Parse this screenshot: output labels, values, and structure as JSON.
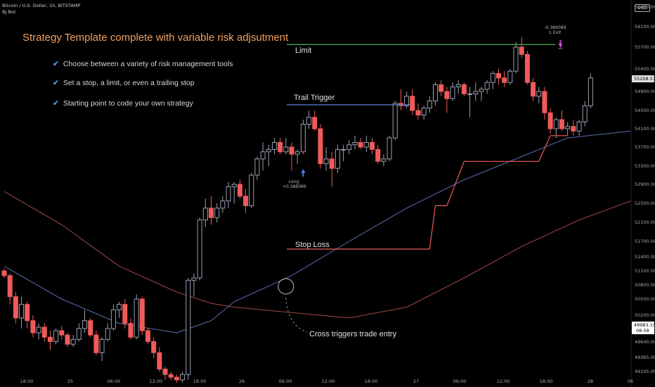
{
  "header": {
    "symbol_line": "Bitcoin / U.S. Dollar, 1h, BITSTAMP",
    "indicator_line": "BJ Bot",
    "currency": "USD"
  },
  "annotations": {
    "title": "Strategy Template complete with variable risk adjsutment",
    "bullets": [
      "Choose between a variety of risk management tools",
      "Set a stop, a limit, or even a trailing stop",
      "Starting point to code your own strategy"
    ],
    "check_glyph": "✔",
    "limit_label": "Limit",
    "trail_label": "Trail Trigger",
    "stop_label": "Stop Loss",
    "cross_label": "Cross triggers trade entry",
    "long_label": "Long",
    "long_value": "+0.386089",
    "exit_value": "-0.386089",
    "exit_label": "L Exit"
  },
  "price_badges": [
    {
      "value": "55208.57",
      "bg": "#e0e0e0",
      "fg": "#000"
    },
    {
      "value": "49983.15",
      "sub": "08:58",
      "bg": "#ffffff",
      "fg": "#000"
    }
  ],
  "chart_data": {
    "type": "candlestick",
    "x_ticks": [
      "18:00",
      "25",
      "06:00",
      "12:00",
      "18:00",
      "26",
      "06:00",
      "12:00",
      "18:00",
      "27",
      "06:00",
      "12:00",
      "18:00",
      "28",
      "06"
    ],
    "y_ticks": [
      56400,
      56100,
      55700,
      55400,
      54900,
      54500,
      54100,
      53700,
      53300,
      52900,
      52500,
      52100,
      51700,
      51400,
      51100,
      50800,
      50500,
      50200,
      49980,
      49640,
      49365,
      49105
    ],
    "y_tick_labels": [
      "56400.00",
      "56100.00",
      "55700.00",
      "55400.00",
      "54900.00",
      "54500.00",
      "54100.00",
      "53700.00",
      "53300.00",
      "52900.00",
      "52500.00",
      "52100.00",
      "51700.00",
      "51400.00",
      "51100.00",
      "50800.00",
      "50500.00",
      "50200.00",
      "49980.00",
      "49640.00",
      "49365.00",
      "49105.00"
    ],
    "colors": {
      "up": "#9aa0b0",
      "down": "#f05a5a",
      "limit": "#4caf50",
      "trail": "#5b7fd0",
      "stop": "#f05a5a",
      "ma_blue": "#5b6fb0",
      "ma_red": "#a04848"
    },
    "candles": [
      [
        51100,
        51150,
        50950,
        51000
      ],
      [
        51000,
        51050,
        50400,
        50550
      ],
      [
        50550,
        50650,
        50050,
        50150
      ],
      [
        50150,
        50550,
        49950,
        50400
      ],
      [
        50400,
        50450,
        49950,
        50100
      ],
      [
        50100,
        50200,
        49750,
        49850
      ],
      [
        49850,
        50050,
        49700,
        49980
      ],
      [
        49980,
        50050,
        49650,
        49750
      ],
      [
        49750,
        49900,
        49500,
        49650
      ],
      [
        49650,
        49950,
        49600,
        49900
      ],
      [
        49900,
        50000,
        49700,
        49800
      ],
      [
        49800,
        49850,
        49550,
        49600
      ],
      [
        49600,
        49800,
        49550,
        49700
      ],
      [
        49700,
        50050,
        49650,
        49950
      ],
      [
        49950,
        50300,
        49850,
        50100
      ],
      [
        50100,
        50150,
        49750,
        49800
      ],
      [
        49800,
        49900,
        49400,
        49450
      ],
      [
        49450,
        49750,
        49300,
        49700
      ],
      [
        49700,
        50050,
        49650,
        49950
      ],
      [
        49950,
        50400,
        49900,
        50300
      ],
      [
        50300,
        50450,
        50150,
        50400
      ],
      [
        50400,
        50500,
        49950,
        50050
      ],
      [
        50050,
        50150,
        49700,
        49750
      ],
      [
        49750,
        50600,
        49700,
        50500
      ],
      [
        50500,
        50550,
        49800,
        49900
      ],
      [
        49900,
        49950,
        49600,
        49650
      ],
      [
        49650,
        49750,
        49350,
        49450
      ],
      [
        49450,
        49550,
        49100,
        49150
      ],
      [
        49150,
        49200,
        48950,
        49050
      ],
      [
        49050,
        49100,
        48950,
        49000
      ],
      [
        49000,
        49050,
        48900,
        48950
      ],
      [
        48950,
        49100,
        48900,
        49050
      ],
      [
        49050,
        50950,
        48950,
        50900
      ],
      [
        50900,
        51050,
        50550,
        50950
      ],
      [
        50950,
        52200,
        50900,
        52150
      ],
      [
        52150,
        52600,
        52000,
        52400
      ],
      [
        52400,
        52650,
        52050,
        52200
      ],
      [
        52200,
        52500,
        52100,
        52400
      ],
      [
        52400,
        52650,
        52300,
        52550
      ],
      [
        52550,
        52950,
        52400,
        52850
      ],
      [
        52850,
        52950,
        52500,
        52900
      ],
      [
        52900,
        53000,
        52600,
        52650
      ],
      [
        52650,
        52800,
        52300,
        52450
      ],
      [
        52450,
        53150,
        52400,
        53100
      ],
      [
        53100,
        53500,
        53000,
        53450
      ],
      [
        53450,
        53800,
        53200,
        53600
      ],
      [
        53600,
        53750,
        53300,
        53650
      ],
      [
        53650,
        53900,
        53550,
        53800
      ],
      [
        53800,
        53900,
        53550,
        53600
      ],
      [
        53600,
        53900,
        53550,
        53700
      ],
      [
        53700,
        53800,
        53200,
        53550
      ],
      [
        53550,
        53650,
        53350,
        53600
      ],
      [
        53600,
        54300,
        53550,
        54200
      ],
      [
        54200,
        54500,
        54100,
        54350
      ],
      [
        54350,
        54500,
        54050,
        54100
      ],
      [
        54100,
        54200,
        53250,
        53350
      ],
      [
        53350,
        53700,
        53200,
        53450
      ],
      [
        53450,
        53600,
        52850,
        53250
      ],
      [
        53250,
        53750,
        53150,
        53650
      ],
      [
        53650,
        53750,
        53400,
        53650
      ],
      [
        53650,
        53850,
        53550,
        53750
      ],
      [
        53750,
        53950,
        53650,
        53800
      ],
      [
        53800,
        53900,
        53650,
        53700
      ],
      [
        53700,
        53950,
        53600,
        53800
      ],
      [
        53800,
        53900,
        53550,
        53650
      ],
      [
        53650,
        53750,
        53350,
        53400
      ],
      [
        53400,
        53550,
        53300,
        53450
      ],
      [
        53450,
        53950,
        53400,
        53900
      ],
      [
        53900,
        54700,
        53850,
        54650
      ],
      [
        54650,
        54950,
        54500,
        54600
      ],
      [
        54600,
        54900,
        54550,
        54800
      ],
      [
        54800,
        54950,
        54400,
        54500
      ],
      [
        54500,
        54650,
        54300,
        54400
      ],
      [
        54400,
        54600,
        54300,
        54550
      ],
      [
        54550,
        54800,
        54450,
        54700
      ],
      [
        54700,
        55100,
        54600,
        55050
      ],
      [
        55050,
        55150,
        54800,
        54900
      ],
      [
        54900,
        55000,
        54450,
        54750
      ],
      [
        54750,
        55100,
        54700,
        55000
      ],
      [
        55000,
        55150,
        54850,
        55050
      ],
      [
        55050,
        55100,
        54800,
        54850
      ],
      [
        54850,
        55000,
        54350,
        54850
      ],
      [
        54850,
        55100,
        54700,
        54900
      ],
      [
        54900,
        55000,
        54700,
        54950
      ],
      [
        54950,
        55150,
        54850,
        55100
      ],
      [
        55100,
        55350,
        54950,
        55300
      ],
      [
        55300,
        55400,
        55050,
        55200
      ],
      [
        55200,
        55350,
        55000,
        55100
      ],
      [
        55100,
        55400,
        55050,
        55350
      ],
      [
        55350,
        55800,
        55300,
        55700
      ],
      [
        55700,
        55900,
        55550,
        55600
      ],
      [
        55600,
        55650,
        55050,
        55100
      ],
      [
        55100,
        55200,
        54700,
        54800
      ],
      [
        54800,
        55000,
        54650,
        54900
      ],
      [
        54900,
        55000,
        54300,
        54450
      ],
      [
        54450,
        54550,
        54000,
        54100
      ],
      [
        54100,
        54350,
        53900,
        54300
      ],
      [
        54300,
        54500,
        54050,
        54100
      ],
      [
        54100,
        54250,
        53950,
        54150
      ],
      [
        54150,
        54300,
        53950,
        54050
      ],
      [
        54050,
        54300,
        53950,
        54250
      ],
      [
        54250,
        54700,
        54150,
        54600
      ],
      [
        54600,
        55300,
        54550,
        55200
      ]
    ],
    "limit_level": 55750,
    "trail_trigger_level": 54620,
    "stop_loss_path": [
      [
        67,
        51550
      ],
      [
        74,
        51550
      ],
      [
        75,
        52450
      ],
      [
        77,
        52450
      ],
      [
        80,
        53400
      ],
      [
        93,
        53400
      ],
      [
        95,
        53950
      ],
      [
        98,
        53950
      ]
    ],
    "ma_blue": [
      [
        0,
        51200
      ],
      [
        10,
        50500
      ],
      [
        20,
        50050
      ],
      [
        30,
        49850
      ],
      [
        36,
        50100
      ],
      [
        40,
        50450
      ],
      [
        50,
        51000
      ],
      [
        60,
        51700
      ],
      [
        70,
        52400
      ],
      [
        80,
        53000
      ],
      [
        90,
        53500
      ],
      [
        98,
        53900
      ],
      [
        109,
        54050
      ]
    ],
    "ma_red": [
      [
        0,
        52750
      ],
      [
        10,
        52050
      ],
      [
        20,
        51200
      ],
      [
        30,
        50650
      ],
      [
        36,
        50420
      ],
      [
        40,
        50350
      ],
      [
        50,
        50250
      ],
      [
        60,
        50150
      ],
      [
        70,
        50350
      ],
      [
        80,
        50950
      ],
      [
        90,
        51600
      ],
      [
        100,
        52150
      ],
      [
        109,
        52550
      ]
    ],
    "cross_index": 49,
    "long_index": 52,
    "exit_index": 97
  }
}
